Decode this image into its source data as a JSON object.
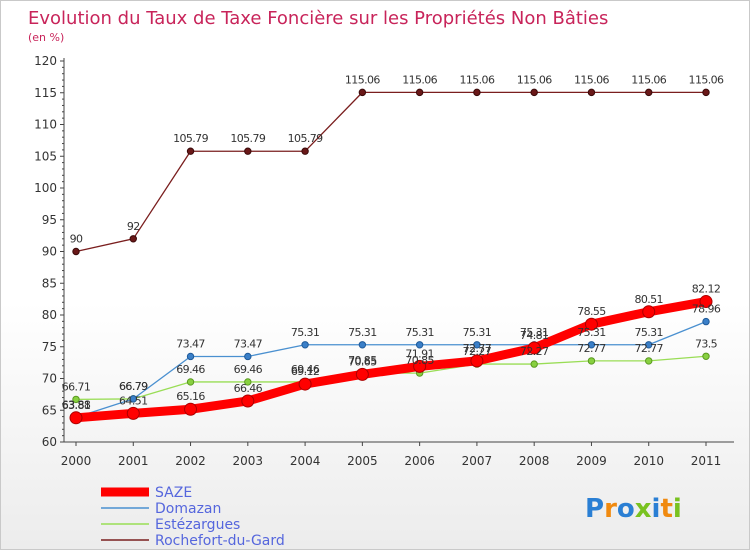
{
  "chart_data": {
    "type": "line",
    "title": "Evolution du Taux de Taxe Foncière sur les Propriétés Non Bâties",
    "subtitle": "(en %)",
    "categories": [
      "2000",
      "2001",
      "2002",
      "2003",
      "2004",
      "2005",
      "2006",
      "2007",
      "2008",
      "2009",
      "2010",
      "2011"
    ],
    "ylim": [
      60,
      120
    ],
    "yticks": [
      "60",
      "65",
      "70",
      "75",
      "80",
      "85",
      "90",
      "95",
      "100",
      "105",
      "110",
      "115",
      "120"
    ],
    "grid": false,
    "legend_position": "bottom-left",
    "series": [
      {
        "name": "SAZE",
        "color": "#ff0000",
        "values": [
          63.81,
          64.51,
          65.16,
          66.46,
          69.12,
          70.65,
          71.91,
          72.77,
          74.81,
          78.55,
          80.51,
          82.12
        ],
        "labels": [
          "63.81",
          "64.51",
          "65.16",
          "66.46",
          "69.12",
          "70.65",
          "71.91",
          "72.77",
          "74.81",
          "78.55",
          "80.51",
          "82.12"
        ]
      },
      {
        "name": "Domazan",
        "color": "#4a90d0",
        "values": [
          63.88,
          66.79,
          73.47,
          73.47,
          75.31,
          75.31,
          75.31,
          75.31,
          75.31,
          75.31,
          75.31,
          78.96
        ],
        "labels": [
          "63.88",
          "66.79",
          "73.47",
          "73.47",
          "75.31",
          "75.31",
          "75.31",
          "75.31",
          "75.31",
          "75.31",
          "75.31",
          "78.96"
        ]
      },
      {
        "name": "Estézargues",
        "color": "#99dd55",
        "values": [
          66.71,
          66.79,
          69.46,
          69.46,
          69.46,
          70.85,
          70.85,
          72.27,
          72.27,
          72.77,
          72.77,
          73.5
        ],
        "labels": [
          "66.71",
          "66.79",
          "69.46",
          "69.46",
          "69.46",
          "70.85",
          "70.85",
          "72.27",
          "72.27",
          "72.77",
          "72.77",
          "73.5"
        ]
      },
      {
        "name": "Rochefort-du-Gard",
        "color": "#7a1e1e",
        "values": [
          90,
          92,
          105.79,
          105.79,
          105.79,
          115.06,
          115.06,
          115.06,
          115.06,
          115.06,
          115.06,
          115.06
        ],
        "labels": [
          "90",
          "92",
          "105.79",
          "105.79",
          "105.79",
          "115.06",
          "115.06",
          "115.06",
          "115.06",
          "115.06",
          "115.06",
          "115.06"
        ]
      }
    ]
  },
  "logo": {
    "text": "Proxiti",
    "letters": [
      "P",
      "r",
      "o",
      "x",
      "i",
      "t",
      "i"
    ]
  }
}
